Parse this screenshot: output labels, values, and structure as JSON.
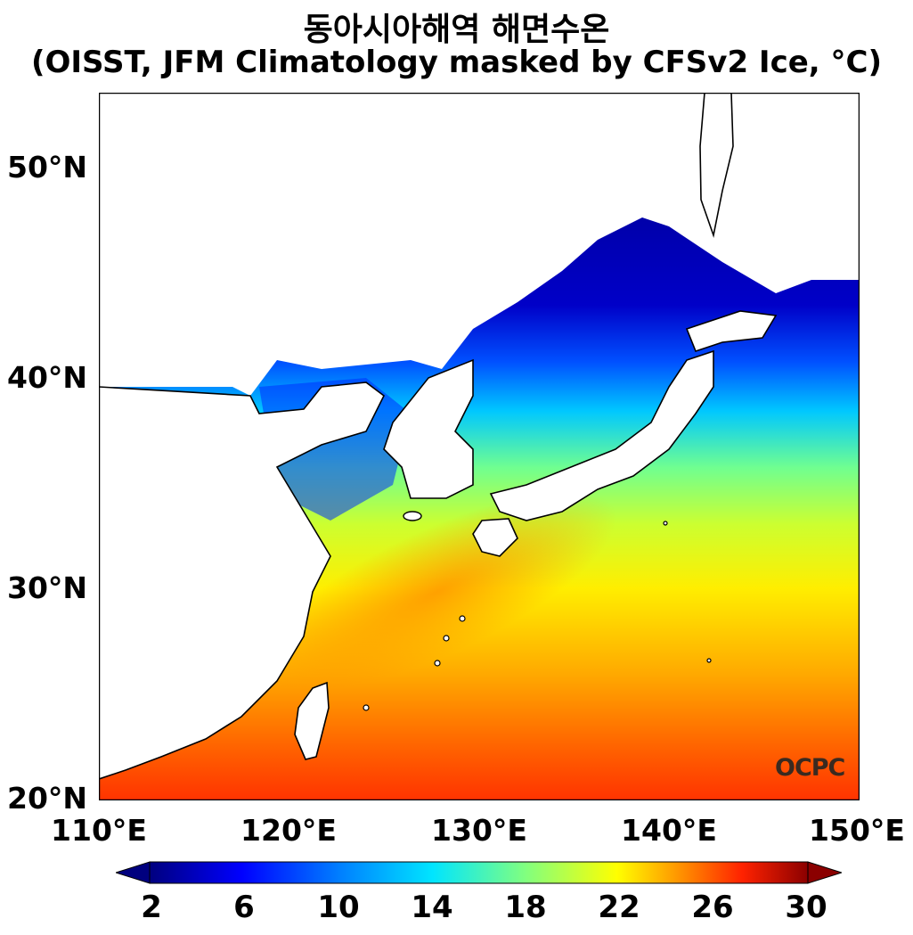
{
  "title": {
    "line1": "동아시아해역 해면수온",
    "line2": "(OISST, JFM Climatology masked by CFSv2 Ice, °C)"
  },
  "axes": {
    "lat_labels": [
      "50°N",
      "40°N",
      "30°N",
      "20°N"
    ],
    "lon_labels": [
      "110°E",
      "120°E",
      "130°E",
      "140°E",
      "150°E"
    ],
    "lon_range": [
      110,
      150
    ],
    "lat_range": [
      20,
      53.5
    ]
  },
  "colorbar": {
    "ticks": [
      "2",
      "6",
      "10",
      "14",
      "18",
      "22",
      "26",
      "30"
    ],
    "range": [
      2,
      30
    ],
    "colors": [
      "#00007f",
      "#0000ff",
      "#0080ff",
      "#00e5ff",
      "#80ff80",
      "#ffff00",
      "#ff9900",
      "#ff2200",
      "#8b0000"
    ]
  },
  "logo": "OCPC",
  "colors": {
    "land": "#ffffff",
    "coast": "#000000"
  }
}
